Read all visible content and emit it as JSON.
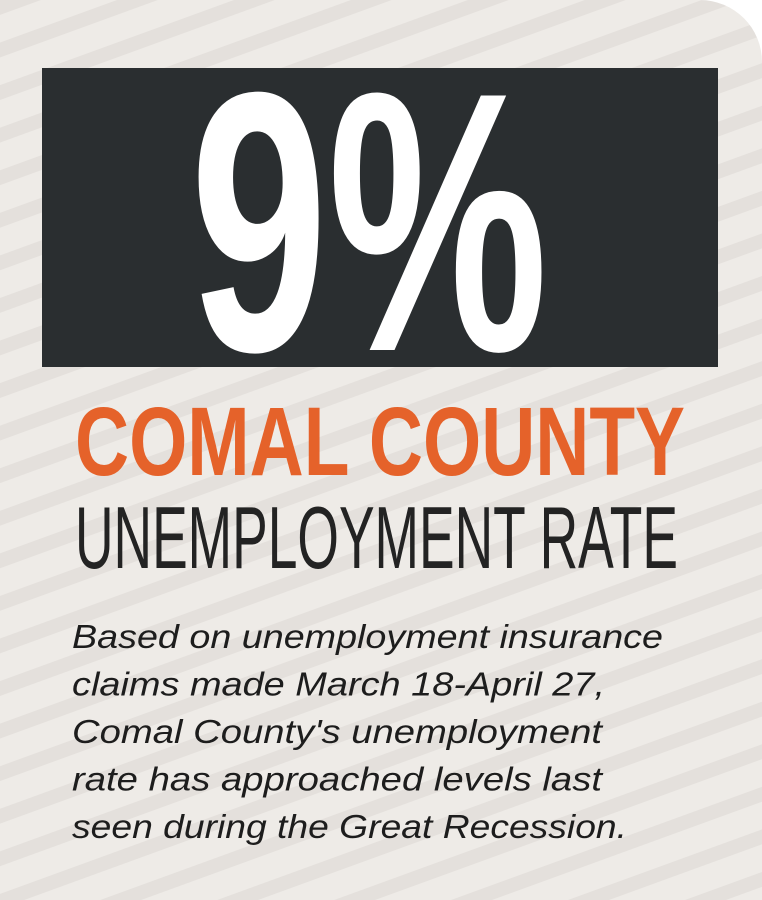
{
  "stat": "9%",
  "title": "COMAL COUNTY",
  "subtitle": "UNEMPLOYMENT RATE",
  "body": [
    "Based on unemployment insurance",
    "claims made March 18-April 27,",
    "Comal County's unemployment",
    "rate has approached levels last",
    "seen during the Great Recession."
  ]
}
